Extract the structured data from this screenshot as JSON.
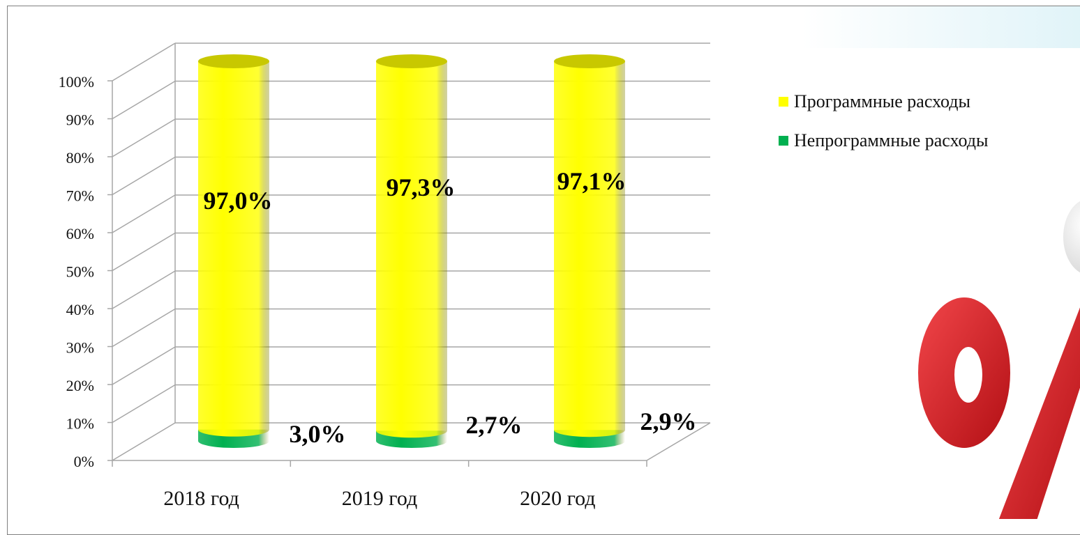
{
  "chart_data": {
    "type": "bar",
    "stacked": true,
    "style": "3d-cylinder",
    "categories": [
      "2018 год",
      "2019 год",
      "2020 год"
    ],
    "series": [
      {
        "name": "Программные расходы",
        "color": "#ffff00",
        "values": [
          97.0,
          97.3,
          97.1
        ],
        "labels": [
          "97,0%",
          "97,3%",
          "97,1%"
        ]
      },
      {
        "name": "Непрограммные расходы",
        "color": "#00b050",
        "values": [
          3.0,
          2.7,
          2.9
        ],
        "labels": [
          "3,0%",
          "2,7%",
          "2,9%"
        ]
      }
    ],
    "yticks": [
      "0%",
      "10%",
      "20%",
      "30%",
      "40%",
      "50%",
      "60%",
      "70%",
      "80%",
      "90%",
      "100%"
    ],
    "ylim": [
      0,
      100
    ],
    "grid": true,
    "legend": "right"
  },
  "decoration": {
    "icon": "percent-sign-icon",
    "color": "#d9151b"
  }
}
